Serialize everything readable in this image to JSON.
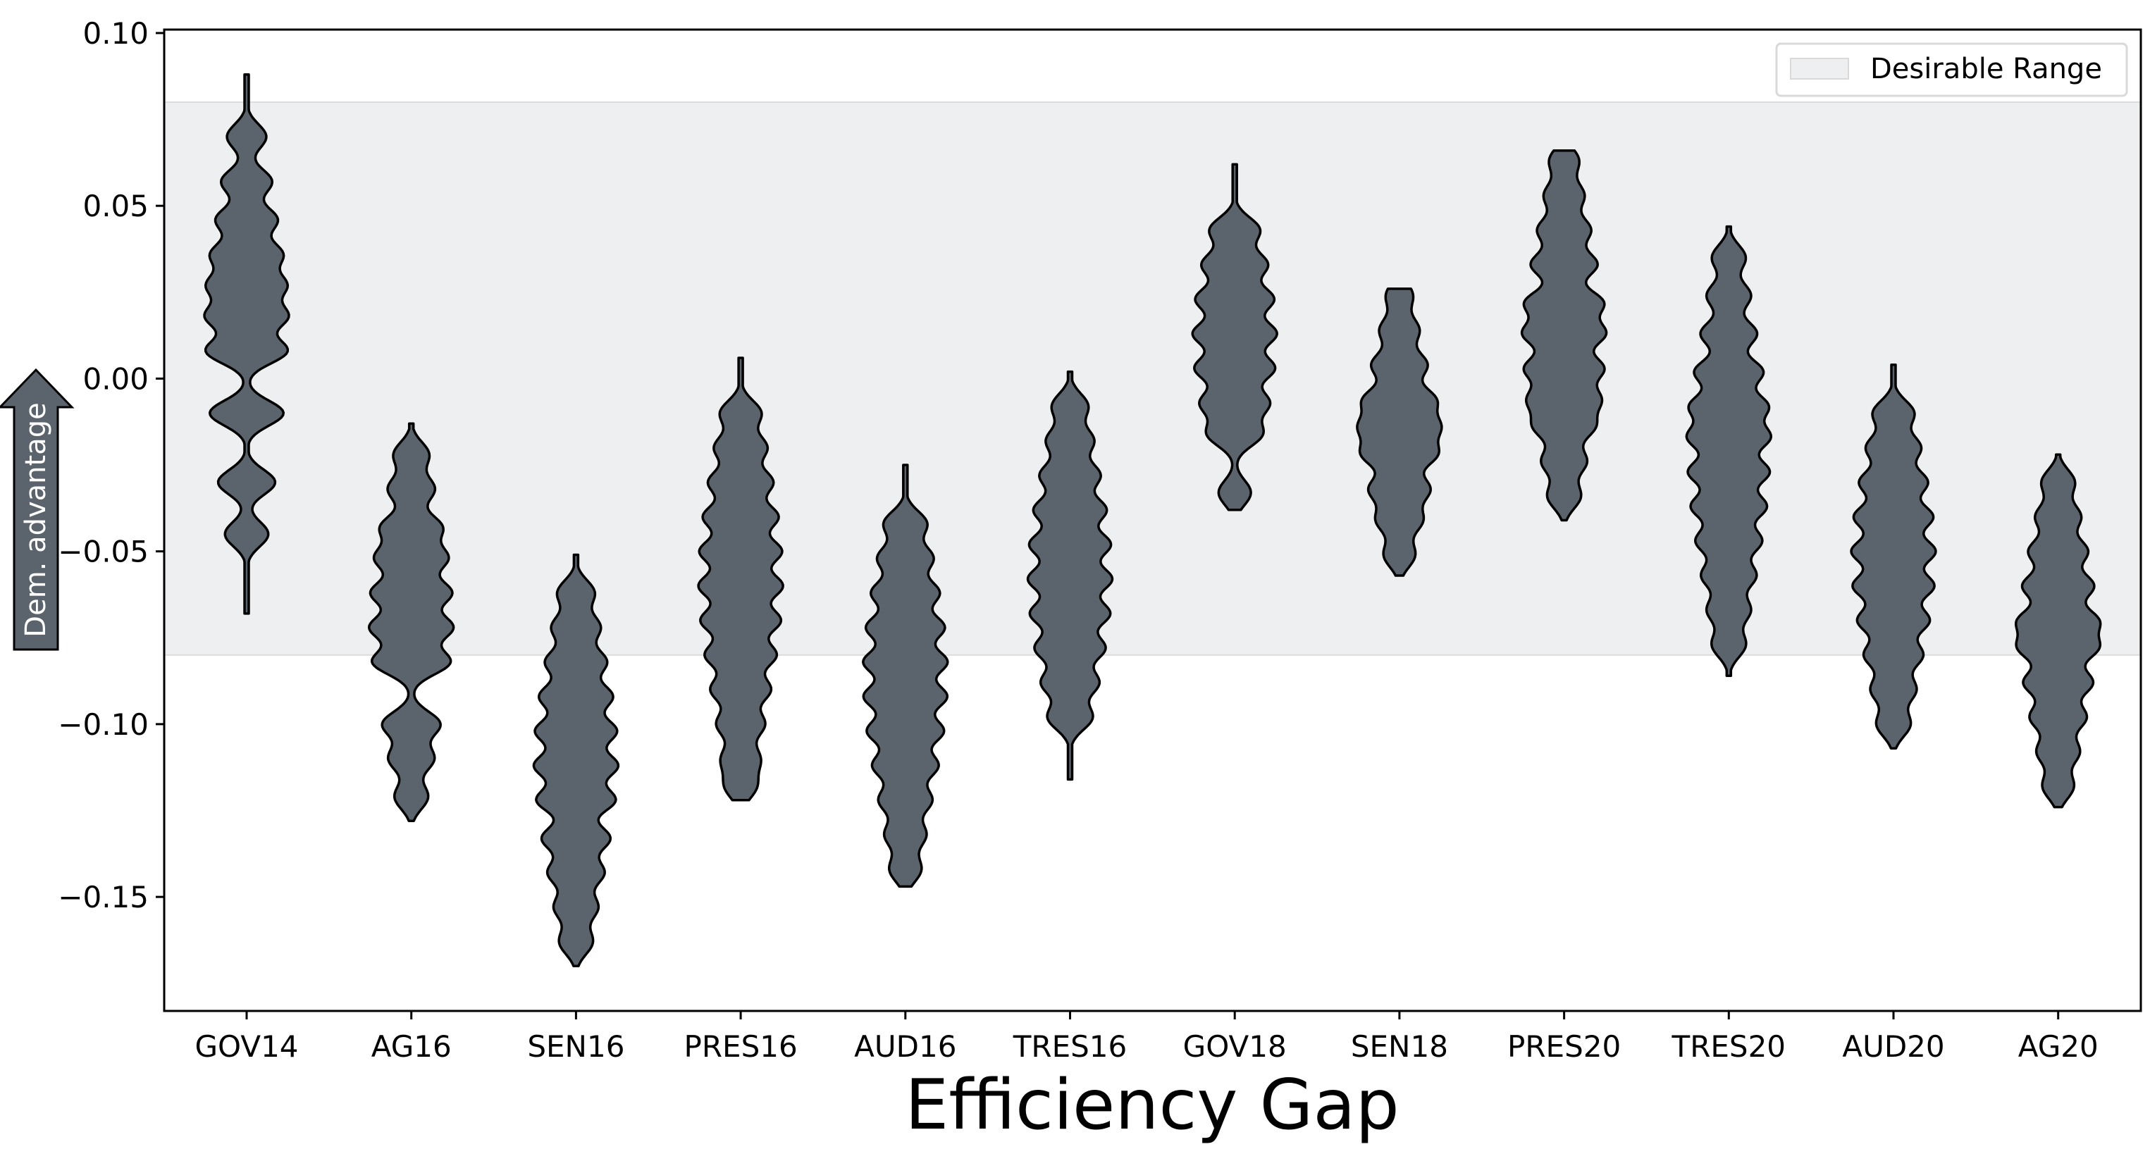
{
  "chart_data": {
    "type": "violin",
    "title": "",
    "xlabel": "Efficiency Gap",
    "ylabel": "",
    "ylim": [
      -0.183,
      0.101
    ],
    "yticks": [
      0.1,
      0.05,
      0.0,
      -0.05,
      -0.1,
      -0.15
    ],
    "ytick_labels": [
      "0.10",
      "0.05",
      "0.00",
      "−0.05",
      "−0.10",
      "−0.15"
    ],
    "categories": [
      "GOV14",
      "AG16",
      "SEN16",
      "PRES16",
      "AUD16",
      "TRES16",
      "GOV18",
      "SEN18",
      "PRES20",
      "TRES20",
      "AUD20",
      "AG20"
    ],
    "distributions": [
      {
        "name": "GOV14",
        "min": -0.068,
        "max": 0.088,
        "peaks": [
          -0.045,
          -0.03,
          -0.01,
          0.008,
          0.018,
          0.027,
          0.036,
          0.046,
          0.057,
          0.07
        ]
      },
      {
        "name": "AG16",
        "min": -0.128,
        "max": -0.013,
        "peaks": [
          -0.121,
          -0.11,
          -0.1,
          -0.082,
          -0.072,
          -0.062,
          -0.052,
          -0.043,
          -0.032,
          -0.022
        ]
      },
      {
        "name": "SEN16",
        "min": -0.17,
        "max": -0.051,
        "peaks": [
          -0.163,
          -0.153,
          -0.143,
          -0.133,
          -0.122,
          -0.112,
          -0.102,
          -0.092,
          -0.082,
          -0.072,
          -0.062
        ]
      },
      {
        "name": "PRES16",
        "min": -0.122,
        "max": 0.006,
        "peaks": [
          -0.118,
          -0.11,
          -0.1,
          -0.09,
          -0.08,
          -0.07,
          -0.06,
          -0.05,
          -0.04,
          -0.03,
          -0.02,
          -0.01
        ]
      },
      {
        "name": "AUD16",
        "min": -0.147,
        "max": -0.025,
        "peaks": [
          -0.142,
          -0.132,
          -0.122,
          -0.112,
          -0.102,
          -0.092,
          -0.082,
          -0.072,
          -0.062,
          -0.052,
          -0.042
        ]
      },
      {
        "name": "TRES16",
        "min": -0.116,
        "max": 0.002,
        "peaks": [
          -0.098,
          -0.088,
          -0.078,
          -0.068,
          -0.058,
          -0.048,
          -0.038,
          -0.028,
          -0.018,
          -0.008
        ]
      },
      {
        "name": "GOV18",
        "min": -0.038,
        "max": 0.062,
        "peaks": [
          -0.033,
          -0.016,
          -0.007,
          0.003,
          0.013,
          0.023,
          0.033,
          0.043
        ]
      },
      {
        "name": "SEN18",
        "min": -0.057,
        "max": 0.026,
        "peaks": [
          -0.051,
          -0.041,
          -0.032,
          -0.022,
          -0.014,
          -0.006,
          0.004,
          0.014,
          0.024
        ]
      },
      {
        "name": "PRES20",
        "min": -0.041,
        "max": 0.066,
        "peaks": [
          -0.034,
          -0.024,
          -0.014,
          -0.006,
          0.003,
          0.013,
          0.022,
          0.033,
          0.043,
          0.053,
          0.063
        ]
      },
      {
        "name": "TRES20",
        "min": -0.086,
        "max": 0.044,
        "peaks": [
          -0.077,
          -0.067,
          -0.057,
          -0.047,
          -0.037,
          -0.027,
          -0.017,
          -0.008,
          0.002,
          0.013,
          0.024,
          0.035
        ]
      },
      {
        "name": "AUD20",
        "min": -0.107,
        "max": 0.004,
        "peaks": [
          -0.1,
          -0.09,
          -0.08,
          -0.07,
          -0.06,
          -0.05,
          -0.04,
          -0.03,
          -0.02,
          -0.01
        ]
      },
      {
        "name": "AG20",
        "min": -0.124,
        "max": -0.022,
        "peaks": [
          -0.118,
          -0.108,
          -0.098,
          -0.088,
          -0.078,
          -0.07,
          -0.06,
          -0.05,
          -0.04,
          -0.03
        ]
      }
    ],
    "shaded_band": {
      "label": "Desirable Range",
      "ymin": -0.08,
      "ymax": 0.08,
      "color": "#eeeff0"
    },
    "violin_fill": "#5b646c",
    "violin_edge": "#000000",
    "legend": {
      "placement": "top-right",
      "entries": [
        "Desirable Range"
      ]
    },
    "annotation": {
      "text": "Dem. advantage",
      "icon": "up-arrow-icon",
      "color": "#5b646c"
    },
    "grid": false
  }
}
